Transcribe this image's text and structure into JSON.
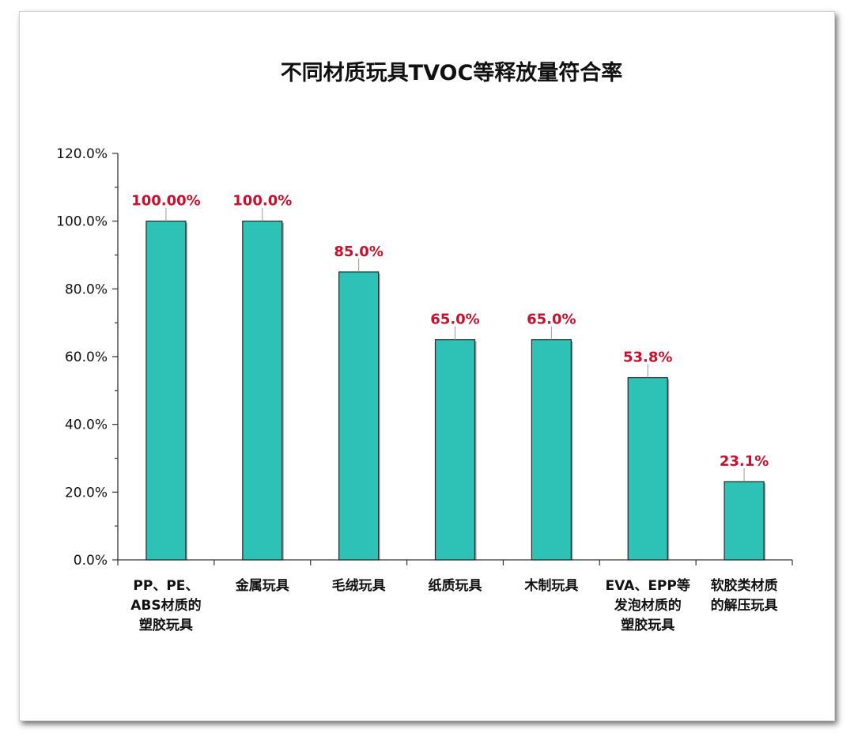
{
  "chart_data": {
    "type": "bar",
    "title": "不同材质玩具TVOC等释放量符合率",
    "xlabel": "",
    "ylabel": "",
    "ylim": [
      0,
      120
    ],
    "ytick_step": 20,
    "ytick_labels": [
      "0.0%",
      "20.0%",
      "40.0%",
      "60.0%",
      "80.0%",
      "100.0%",
      "120.0%"
    ],
    "grid": false,
    "legend": "none",
    "categories": [
      [
        "PP、PE、",
        "ABS材质的",
        "塑胶玩具"
      ],
      [
        "金属玩具"
      ],
      [
        "毛绒玩具"
      ],
      [
        "纸质玩具"
      ],
      [
        "木制玩具"
      ],
      [
        "EVA、EPP等",
        "发泡材质的",
        "塑胶玩具"
      ],
      [
        "软胶类材质",
        "的解压玩具"
      ]
    ],
    "values": [
      100.0,
      100.0,
      85.0,
      65.0,
      65.0,
      53.8,
      23.1
    ],
    "data_labels": [
      "100.00%",
      "100.0%",
      "85.0%",
      "65.0%",
      "65.0%",
      "53.8%",
      "23.1%"
    ],
    "colors": {
      "bar": "#2ec1b5",
      "bar_stroke": "#1e2b2b",
      "label": "#c8102e",
      "axis": "#333333"
    }
  }
}
